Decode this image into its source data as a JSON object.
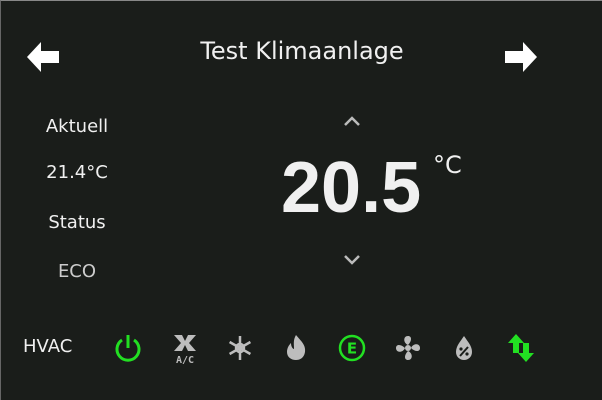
{
  "header": {
    "title": "Test Klimaanlage",
    "back_icon": "arrow-left-icon",
    "forward_icon": "arrow-right-icon"
  },
  "left": {
    "current_label": "Aktuell",
    "current_value": "21.4°C",
    "status_label": "Status",
    "status_value": "ECO"
  },
  "setpoint": {
    "value": "20.5",
    "unit": "°C"
  },
  "hvac": {
    "label": "HVAC",
    "modes": [
      {
        "icon": "power-icon",
        "active": true
      },
      {
        "icon": "ac-fan-icon",
        "text": "A/C",
        "active": false
      },
      {
        "icon": "snowflake-icon",
        "active": false
      },
      {
        "icon": "flame-icon",
        "active": false
      },
      {
        "icon": "eco-icon",
        "text": "E",
        "active": true
      },
      {
        "icon": "fan-icon",
        "active": false
      },
      {
        "icon": "dry-drop-icon",
        "active": false
      },
      {
        "icon": "auto-arrows-icon",
        "active": true
      }
    ]
  },
  "colors": {
    "background": "#1a1d1a",
    "active": "#22e022",
    "inactive": "#bdbdbd",
    "text": "#f0f0f0"
  }
}
